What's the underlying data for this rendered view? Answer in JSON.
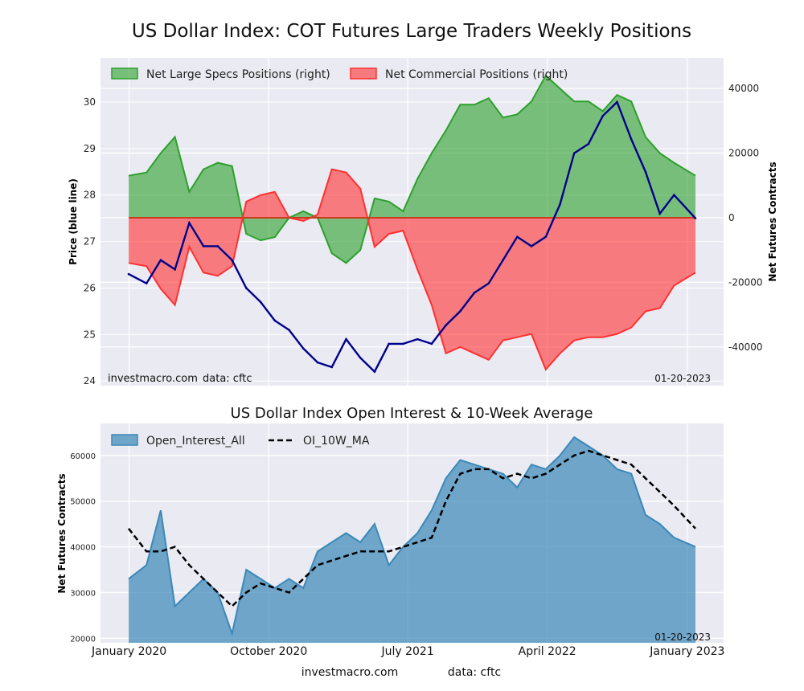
{
  "figure": {
    "title": "US Dollar Index: COT Futures Large Traders Weekly Positions",
    "footer_site": "investmacro.com",
    "footer_source": "data: cftc"
  },
  "chart_data": [
    {
      "type": "area",
      "panel": "positions",
      "title": "US Dollar Index: COT Futures Large Traders Weekly Positions",
      "ylabel": "Price (blue line)",
      "y2label": "Net Futures Contracts",
      "ylim": [
        23.9,
        30.95
      ],
      "y2lim": [
        -52000,
        49500
      ],
      "y_ticks": [
        24,
        25,
        26,
        27,
        28,
        29,
        30
      ],
      "y2_ticks": [
        40000,
        20000,
        0,
        -20000,
        -40000
      ],
      "y2_tick_labels": [
        "40000",
        "20000",
        "0",
        "-20000",
        "-40000"
      ],
      "x_tick_labels": [
        "January 2020",
        "October 2020",
        "July 2021",
        "April 2022",
        "January 2023"
      ],
      "grid": true,
      "legend_position": "top-left",
      "site_label": "investmacro.com",
      "source_label": "data: cftc",
      "date_label": "01-20-2023",
      "colors": {
        "specs": "#2ca02c",
        "commercial": "#ff3030",
        "price": "#00008b",
        "background": "#eaeaf2"
      },
      "x": [
        "2019-12-31",
        "2020-02-04",
        "2020-03-03",
        "2020-03-31",
        "2020-04-28",
        "2020-05-26",
        "2020-06-23",
        "2020-07-21",
        "2020-08-18",
        "2020-09-15",
        "2020-10-13",
        "2020-11-10",
        "2020-12-08",
        "2021-01-05",
        "2021-02-02",
        "2021-03-02",
        "2021-03-30",
        "2021-04-27",
        "2021-05-25",
        "2021-06-22",
        "2021-07-20",
        "2021-08-17",
        "2021-09-14",
        "2021-10-12",
        "2021-11-09",
        "2021-12-07",
        "2022-01-04",
        "2022-02-01",
        "2022-03-01",
        "2022-03-29",
        "2022-04-26",
        "2022-05-24",
        "2022-06-21",
        "2022-07-19",
        "2022-08-16",
        "2022-09-13",
        "2022-10-11",
        "2022-11-08",
        "2022-12-06",
        "2023-01-17"
      ],
      "series": [
        {
          "name": "Net Large Specs Positions (right)",
          "axis": "right",
          "style": "fill",
          "values": [
            13000,
            14000,
            20000,
            25000,
            8000,
            15000,
            17000,
            16000,
            -5000,
            -7000,
            -6000,
            0,
            2000,
            0,
            -11000,
            -14000,
            -10000,
            6000,
            5000,
            2000,
            12000,
            20000,
            27000,
            35000,
            35000,
            37000,
            31000,
            32000,
            36000,
            44000,
            40000,
            36000,
            36000,
            33000,
            38000,
            36000,
            25000,
            20000,
            17000,
            13000
          ]
        },
        {
          "name": "Net Commercial Positions (right)",
          "axis": "right",
          "style": "fill",
          "values": [
            -14000,
            -15000,
            -22000,
            -27000,
            -9000,
            -17000,
            -18000,
            -15000,
            5000,
            7000,
            8000,
            0,
            -1000,
            1000,
            15000,
            14000,
            9000,
            -9000,
            -5000,
            -4000,
            -16000,
            -27000,
            -42000,
            -40000,
            -42000,
            -44000,
            -38000,
            -37000,
            -36000,
            -47000,
            -42000,
            -38000,
            -37000,
            -37000,
            -36000,
            -34000,
            -29000,
            -28000,
            -21000,
            -17000
          ]
        },
        {
          "name": "Price",
          "axis": "left",
          "style": "line",
          "values": [
            26.3,
            26.1,
            26.6,
            26.4,
            27.4,
            26.9,
            26.9,
            26.6,
            26.0,
            25.7,
            25.3,
            25.1,
            24.7,
            24.4,
            24.3,
            24.9,
            24.5,
            24.2,
            24.8,
            24.8,
            24.9,
            24.8,
            25.2,
            25.5,
            25.9,
            26.1,
            26.6,
            27.1,
            26.9,
            27.1,
            27.8,
            28.9,
            29.1,
            29.7,
            30.0,
            29.2,
            28.5,
            27.6,
            28.0,
            27.5
          ]
        }
      ]
    },
    {
      "type": "area",
      "panel": "open_interest",
      "title": "US Dollar Index Open Interest & 10-Week Average",
      "ylabel": "Net Futures Contracts",
      "ylim": [
        19000,
        67000
      ],
      "y_ticks": [
        20000,
        30000,
        40000,
        50000,
        60000
      ],
      "x_tick_labels": [
        "January 2020",
        "October 2020",
        "July 2021",
        "April 2022",
        "January 2023"
      ],
      "grid": true,
      "legend_position": "top-left",
      "date_label": "01-20-2023",
      "colors": {
        "oi": "#3b88b8",
        "ma": "#000000",
        "background": "#eaeaf2"
      },
      "x": [
        "2019-12-31",
        "2020-02-04",
        "2020-03-03",
        "2020-03-31",
        "2020-04-28",
        "2020-05-26",
        "2020-06-23",
        "2020-07-21",
        "2020-08-18",
        "2020-09-15",
        "2020-10-13",
        "2020-11-10",
        "2020-12-08",
        "2021-01-05",
        "2021-02-02",
        "2021-03-02",
        "2021-03-30",
        "2021-04-27",
        "2021-05-25",
        "2021-06-22",
        "2021-07-20",
        "2021-08-17",
        "2021-09-14",
        "2021-10-12",
        "2021-11-09",
        "2021-12-07",
        "2022-01-04",
        "2022-02-01",
        "2022-03-01",
        "2022-03-29",
        "2022-04-26",
        "2022-05-24",
        "2022-06-21",
        "2022-07-19",
        "2022-08-16",
        "2022-09-13",
        "2022-10-11",
        "2022-11-08",
        "2022-12-06",
        "2023-01-17"
      ],
      "series": [
        {
          "name": "Open_Interest_All",
          "style": "fill",
          "values": [
            33000,
            36000,
            48000,
            27000,
            30000,
            33000,
            30000,
            21000,
            35000,
            33000,
            31000,
            33000,
            31000,
            39000,
            41000,
            43000,
            41000,
            45000,
            36000,
            40000,
            43000,
            48000,
            55000,
            59000,
            58000,
            57000,
            56000,
            53000,
            58000,
            57000,
            60000,
            64000,
            62000,
            60000,
            57000,
            56000,
            47000,
            45000,
            42000,
            40000
          ]
        },
        {
          "name": "OI_10W_MA",
          "style": "dashed",
          "values": [
            44000,
            39000,
            39000,
            40000,
            36000,
            33000,
            30000,
            27000,
            30000,
            32000,
            31000,
            30000,
            33000,
            36000,
            37000,
            38000,
            39000,
            39000,
            39000,
            40000,
            41000,
            42000,
            50000,
            56000,
            57000,
            57000,
            55000,
            56000,
            55000,
            56000,
            58000,
            60000,
            61000,
            60000,
            59000,
            58000,
            55000,
            52000,
            49000,
            44000
          ]
        }
      ]
    }
  ]
}
